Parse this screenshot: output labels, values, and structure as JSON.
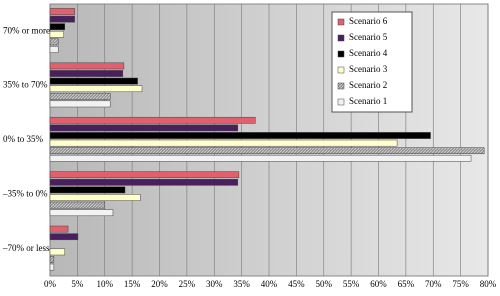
{
  "chart_data": {
    "type": "hbar",
    "categories": [
      "70% or more",
      "35% to 70%",
      "0% to 35%",
      "–35% to 0%",
      "–70% or less"
    ],
    "series": [
      {
        "name": "Scenario 6",
        "color": "#e0606e",
        "values": [
          4.5,
          13.5,
          37.5,
          34.5,
          3.3
        ]
      },
      {
        "name": "Scenario 5",
        "color": "#4a1f5e",
        "values": [
          4.5,
          13.3,
          34.3,
          34.3,
          5.1
        ]
      },
      {
        "name": "Scenario 4",
        "color": "#000000",
        "values": [
          2.7,
          16,
          69.5,
          13.7,
          0
        ]
      },
      {
        "name": "Scenario 3",
        "color": "#ffffcc",
        "values": [
          2.5,
          16.8,
          63.4,
          16.5,
          2.7
        ]
      },
      {
        "name": "Scenario 2",
        "color": "#8c8c8c",
        "values": [
          1.5,
          11,
          79.3,
          10,
          0.7
        ]
      },
      {
        "name": "Scenario 1",
        "color": "#f2f2f2",
        "values": [
          1.5,
          11,
          76.9,
          11.5,
          0.7
        ]
      }
    ],
    "xlim": [
      0,
      80
    ],
    "xticks": [
      {
        "value": 0,
        "label": "0%"
      },
      {
        "value": 5,
        "label": "5%"
      },
      {
        "value": 10,
        "label": "10%"
      },
      {
        "value": 15,
        "label": "15%"
      },
      {
        "value": 20,
        "label": "20%"
      },
      {
        "value": 25,
        "label": "25%"
      },
      {
        "value": 30,
        "label": "30%"
      },
      {
        "value": 35,
        "label": "35%"
      },
      {
        "value": 40,
        "label": "40%"
      },
      {
        "value": 45,
        "label": "45%"
      },
      {
        "value": 50,
        "label": "50%"
      },
      {
        "value": 55,
        "label": "55%"
      },
      {
        "value": 60,
        "label": "60%"
      },
      {
        "value": 65,
        "label": "65%"
      },
      {
        "value": 70,
        "label": "70%"
      },
      {
        "value": 75,
        "label": "75%"
      },
      {
        "value": 80,
        "label": "80%"
      }
    ],
    "grid": true,
    "legend": "top-right"
  }
}
